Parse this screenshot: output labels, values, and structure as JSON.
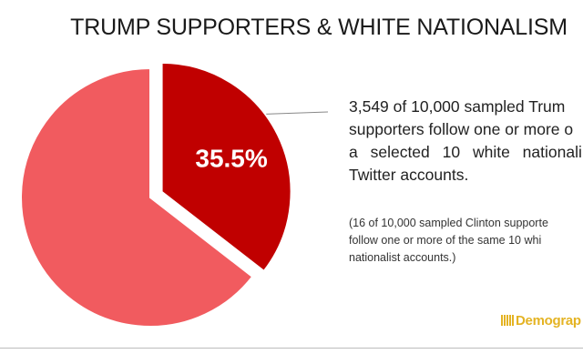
{
  "chart_data": {
    "type": "pie",
    "title": "TRUMP SUPPORTERS & WHITE NATIONALISM",
    "slices": [
      {
        "label": "35.5%",
        "value": 35.5,
        "color": "#c00000",
        "exploded": true
      },
      {
        "label": "",
        "value": 64.5,
        "color": "#f15b5f",
        "exploded": false
      }
    ]
  },
  "annotation": {
    "main_lines": [
      "3,549 of 10,000 sampled Trum",
      "supporters follow one or more o",
      "a selected 10 white nationali",
      "Twitter accounts."
    ],
    "note_lines": [
      "(16 of 10,000 sampled Clinton supporte",
      "follow one or more of the same 10 whi",
      "nationalist accounts.)"
    ]
  },
  "brand": {
    "name": "Demograp"
  }
}
